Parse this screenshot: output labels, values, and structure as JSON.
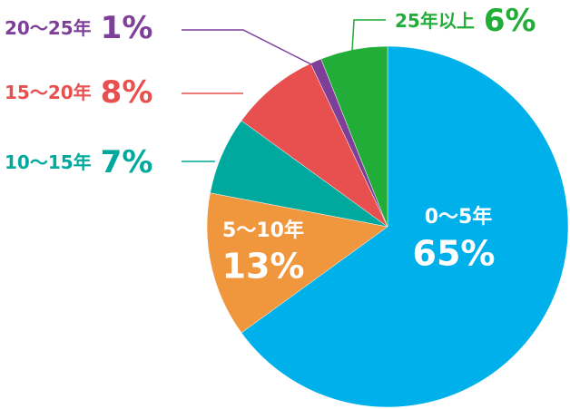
{
  "chart_data": {
    "type": "pie",
    "categories": [
      "0～5年",
      "5～10年",
      "10～15年",
      "15～20年",
      "20～25年",
      "25年以上"
    ],
    "values": [
      65,
      13,
      7,
      8,
      1,
      6
    ],
    "value_labels": [
      "65%",
      "13%",
      "7%",
      "8%",
      "1%",
      "6%"
    ],
    "colors": [
      "#00b0ea",
      "#f0963c",
      "#00a99d",
      "#e8504f",
      "#7d3f98",
      "#22ac38"
    ]
  }
}
